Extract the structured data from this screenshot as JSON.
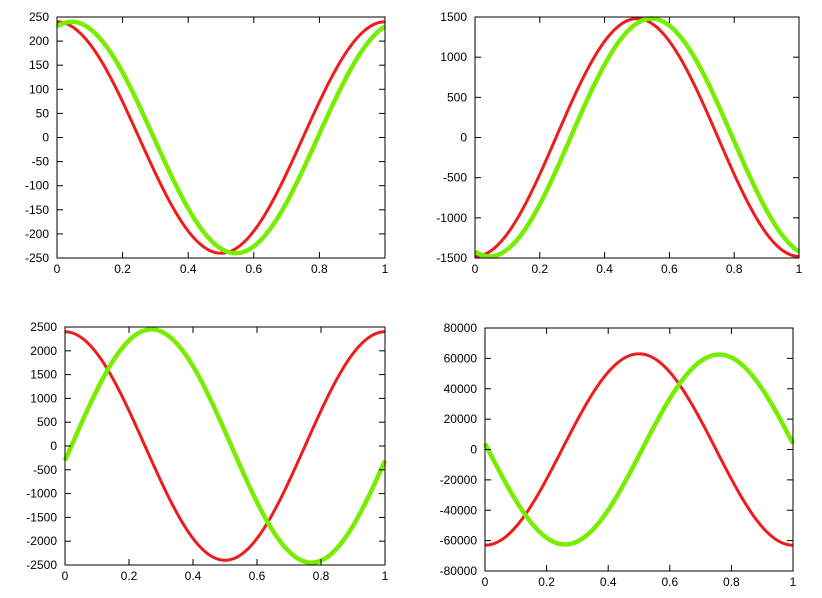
{
  "chart_data": [
    {
      "type": "line",
      "xlim": [
        0,
        1
      ],
      "ylim": [
        -250,
        250
      ],
      "x_ticks": [
        "0",
        "0.2",
        "0.4",
        "0.6",
        "0.8",
        "1"
      ],
      "y_ticks": [
        "250",
        "200",
        "150",
        "100",
        "50",
        "0",
        "-50",
        "-100",
        "-150",
        "-200",
        "-250"
      ],
      "grid": false,
      "series": [
        {
          "color": "#ee1c1c",
          "amplitude": 240,
          "period": 1,
          "phase_peak_x": 0
        },
        {
          "color": "#77ee00",
          "amplitude": 240,
          "period": 1,
          "phase_peak_x": 0.045
        }
      ]
    },
    {
      "type": "line",
      "xlim": [
        0,
        1
      ],
      "ylim": [
        -1500,
        1500
      ],
      "x_ticks": [
        "0",
        "0.2",
        "0.4",
        "0.6",
        "0.8",
        "1"
      ],
      "y_ticks": [
        "1500",
        "1000",
        "500",
        "0",
        "-500",
        "-1000",
        "-1500"
      ],
      "grid": false,
      "series": [
        {
          "color": "#ee1c1c",
          "amplitude": 1480,
          "period": 1,
          "phase_peak_x": 0.5
        },
        {
          "color": "#77ee00",
          "amplitude": 1480,
          "period": 1,
          "phase_peak_x": 0.545
        }
      ]
    },
    {
      "type": "line",
      "xlim": [
        0,
        1
      ],
      "ylim": [
        -2500,
        2500
      ],
      "x_ticks": [
        "0",
        "0.2",
        "0.4",
        "0.6",
        "0.8",
        "1"
      ],
      "y_ticks": [
        "2500",
        "2000",
        "1500",
        "1000",
        "500",
        "0",
        "-500",
        "-1000",
        "-1500",
        "-2000",
        "-2500"
      ],
      "grid": false,
      "series": [
        {
          "color": "#ee1c1c",
          "amplitude": 2400,
          "period": 1,
          "phase_peak_x": 0
        },
        {
          "color": "#77ee00",
          "amplitude": 2450,
          "period": 1,
          "phase_peak_x": 0.27
        }
      ]
    },
    {
      "type": "line",
      "xlim": [
        0,
        1
      ],
      "ylim": [
        -80000,
        80000
      ],
      "x_ticks": [
        "0",
        "0.2",
        "0.4",
        "0.6",
        "0.8",
        "1"
      ],
      "y_ticks": [
        "80000",
        "60000",
        "40000",
        "20000",
        "0",
        "-20000",
        "-40000",
        "-60000",
        "-80000"
      ],
      "grid": false,
      "series": [
        {
          "color": "#ee1c1c",
          "amplitude": 63000,
          "period": 1,
          "phase_peak_x": 0.5
        },
        {
          "color": "#77ee00",
          "amplitude": 62500,
          "period": 1,
          "phase_peak_x": 0.76
        }
      ]
    }
  ]
}
